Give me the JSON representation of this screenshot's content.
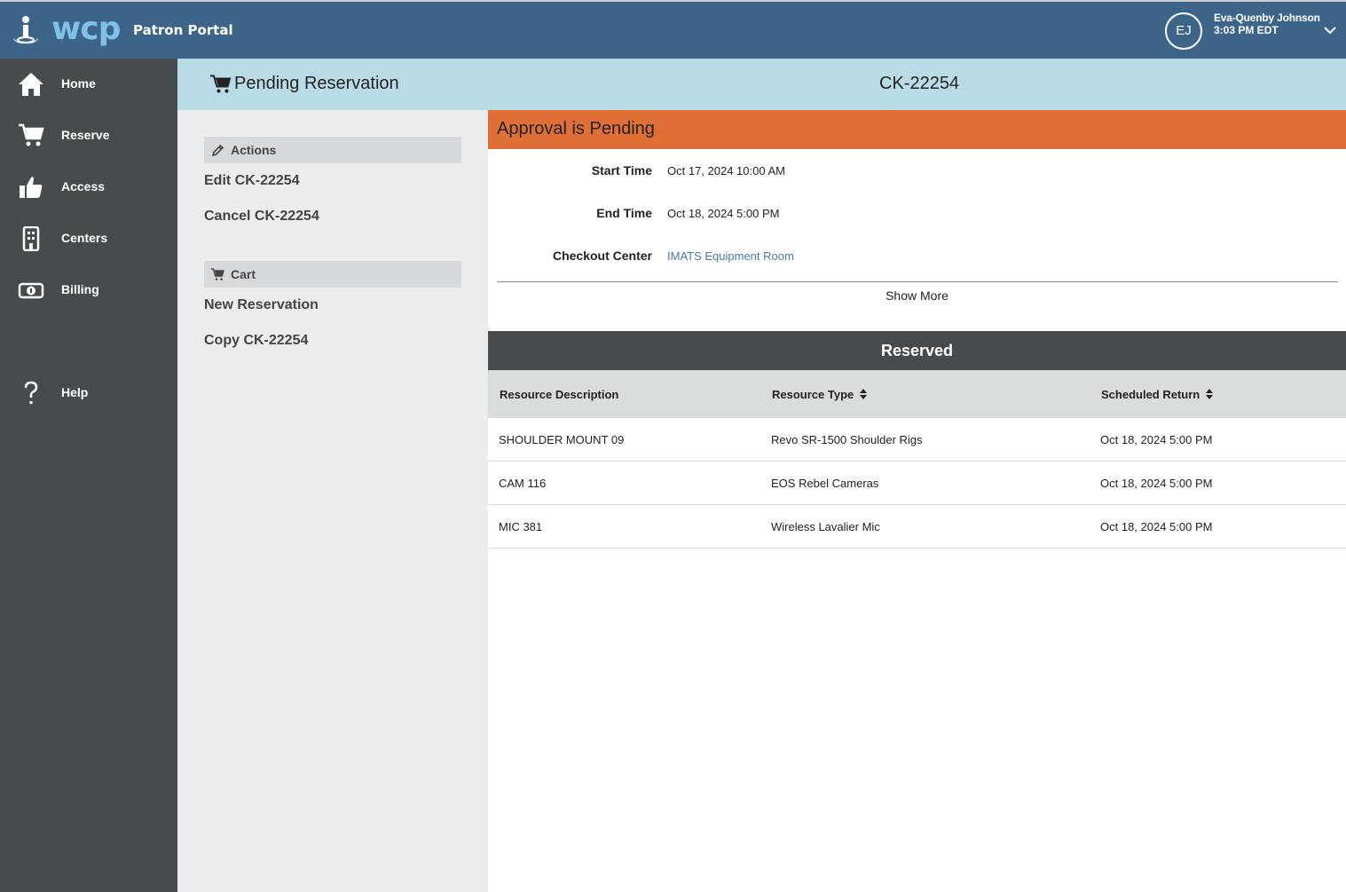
{
  "app": {
    "logo_text": "wcp",
    "portal_label": "Patron Portal"
  },
  "user": {
    "initials": "EJ",
    "name": "Eva-Quenby Johnson",
    "time": "3:03 PM EDT"
  },
  "sidebar": {
    "items": [
      {
        "label": "Home",
        "icon": "home-icon"
      },
      {
        "label": "Reserve",
        "icon": "cart-icon"
      },
      {
        "label": "Access",
        "icon": "thumbs-up-icon"
      },
      {
        "label": "Centers",
        "icon": "building-icon"
      },
      {
        "label": "Billing",
        "icon": "money-icon"
      },
      {
        "label": "Help",
        "icon": "question-icon"
      }
    ]
  },
  "header": {
    "title": "Pending Reservation",
    "reservation_id": "CK-22254"
  },
  "actions": {
    "heading": "Actions",
    "edit_label": "Edit CK-22254",
    "cancel_label": "Cancel CK-22254"
  },
  "cart": {
    "heading": "Cart",
    "new_label": "New Reservation",
    "copy_label": "Copy CK-22254"
  },
  "status": {
    "text": "Approval is Pending",
    "color": "#e06f37"
  },
  "details": {
    "start_label": "Start Time",
    "start_value": "Oct 17, 2024 10:00 AM",
    "end_label": "End Time",
    "end_value": "Oct 18, 2024 5:00 PM",
    "center_label": "Checkout Center",
    "center_value": "IMATS Equipment Room",
    "show_more": "Show More"
  },
  "reserved": {
    "title": "Reserved",
    "columns": [
      "Resource Description",
      "Resource Type",
      "Scheduled Return"
    ],
    "rows": [
      [
        "SHOULDER MOUNT 09",
        "Revo SR-1500 Shoulder Rigs",
        "Oct 18, 2024 5:00 PM"
      ],
      [
        "CAM 116",
        "EOS Rebel Cameras",
        "Oct 18, 2024 5:00 PM"
      ],
      [
        "MIC 381",
        "Wireless Lavalier Mic",
        "Oct 18, 2024 5:00 PM"
      ]
    ]
  },
  "colors": {
    "topbar": "#3c6589",
    "sidebar": "#464b4d",
    "header_band": "#b9dbe6",
    "accent_logo": "#7fc1e6",
    "link": "#4a77aa"
  }
}
